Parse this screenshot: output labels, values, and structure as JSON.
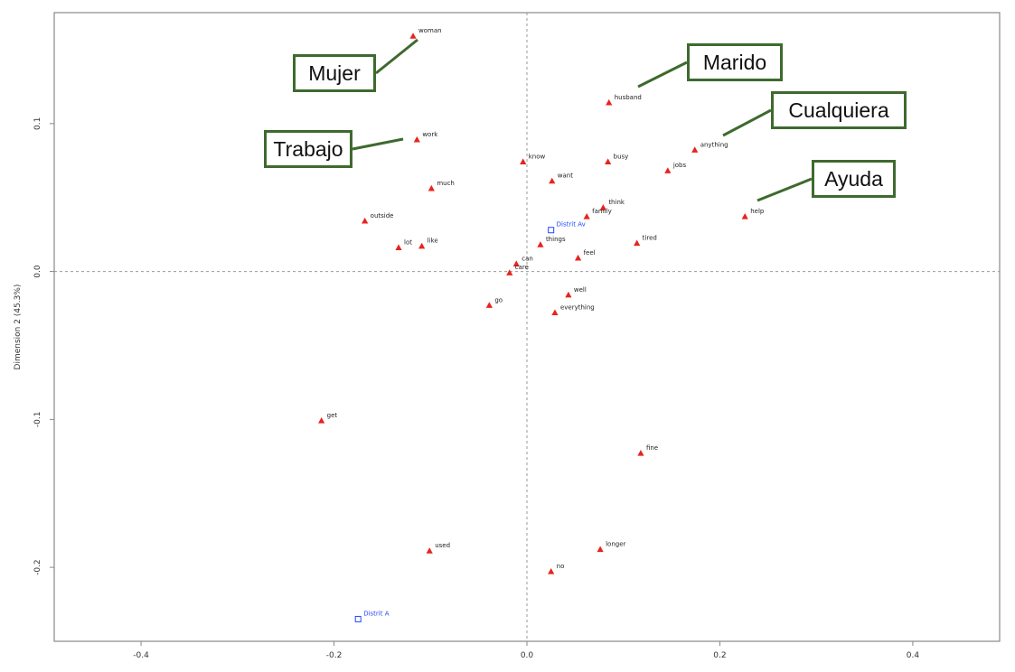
{
  "chart_data": {
    "type": "scatter",
    "title": "",
    "xlabel": "",
    "ylabel": "Dimension 2 (45.3%)",
    "xlim": [
      -0.49,
      0.49
    ],
    "ylim": [
      -0.25,
      0.175
    ],
    "xticks": [
      -0.4,
      -0.2,
      0.0,
      0.2,
      0.4
    ],
    "xtick_labels": [
      "-0.4",
      "-0.2",
      "0.0",
      "0.2",
      "0.4"
    ],
    "yticks": [
      -0.2,
      -0.1,
      0.0,
      0.1
    ],
    "ytick_labels": [
      "-0.2",
      "-0.1",
      "0.0",
      "0.1"
    ],
    "reference_lines": {
      "x": 0,
      "y": 0,
      "style": "dashed"
    },
    "grid": false,
    "series": [
      {
        "marker": "triangle",
        "color": "#e8231f",
        "points": [
          {
            "label": "woman",
            "x": -0.118,
            "y": 0.159
          },
          {
            "label": "husband",
            "x": 0.085,
            "y": 0.114
          },
          {
            "label": "work",
            "x": -0.114,
            "y": 0.089
          },
          {
            "label": "anything",
            "x": 0.174,
            "y": 0.082
          },
          {
            "label": "know",
            "x": -0.004,
            "y": 0.074
          },
          {
            "label": "busy",
            "x": 0.084,
            "y": 0.074
          },
          {
            "label": "jobs",
            "x": 0.146,
            "y": 0.068
          },
          {
            "label": "want",
            "x": 0.026,
            "y": 0.061
          },
          {
            "label": "much",
            "x": -0.099,
            "y": 0.056
          },
          {
            "label": "think",
            "x": 0.079,
            "y": 0.043
          },
          {
            "label": "family",
            "x": 0.062,
            "y": 0.037
          },
          {
            "label": "help",
            "x": 0.226,
            "y": 0.037
          },
          {
            "label": "outside",
            "x": -0.168,
            "y": 0.034
          },
          {
            "label": "things",
            "x": 0.014,
            "y": 0.018
          },
          {
            "label": "tired",
            "x": 0.114,
            "y": 0.019
          },
          {
            "label": "lot",
            "x": -0.133,
            "y": 0.016
          },
          {
            "label": "like",
            "x": -0.109,
            "y": 0.017
          },
          {
            "label": "feel",
            "x": 0.053,
            "y": 0.009
          },
          {
            "label": "can",
            "x": -0.011,
            "y": 0.005
          },
          {
            "label": "care",
            "x": -0.018,
            "y": -0.001
          },
          {
            "label": "go",
            "x": -0.039,
            "y": -0.023
          },
          {
            "label": "well",
            "x": 0.043,
            "y": -0.016
          },
          {
            "label": "everything",
            "x": 0.029,
            "y": -0.028
          },
          {
            "label": "get",
            "x": -0.213,
            "y": -0.101
          },
          {
            "label": "fine",
            "x": 0.118,
            "y": -0.123
          },
          {
            "label": "used",
            "x": -0.101,
            "y": -0.189
          },
          {
            "label": "longer",
            "x": 0.076,
            "y": -0.188
          },
          {
            "label": "no",
            "x": 0.025,
            "y": -0.203
          }
        ]
      },
      {
        "marker": "square",
        "color": "#2244ff",
        "points": [
          {
            "label": "Distrit Av",
            "x": 0.025,
            "y": 0.028
          },
          {
            "label": "Distrit A",
            "x": -0.175,
            "y": -0.235
          }
        ]
      }
    ],
    "annotations": [
      {
        "text": "Mujer",
        "target": "woman"
      },
      {
        "text": "Marido",
        "target": "husband"
      },
      {
        "text": "Cualquiera",
        "target": "anything"
      },
      {
        "text": "Trabajo",
        "target": "work"
      },
      {
        "text": "Ayuda",
        "target": "help"
      }
    ],
    "colors": {
      "annotation_border": "#3e6a2e",
      "axis": "#888888",
      "reference": "#999999"
    }
  }
}
